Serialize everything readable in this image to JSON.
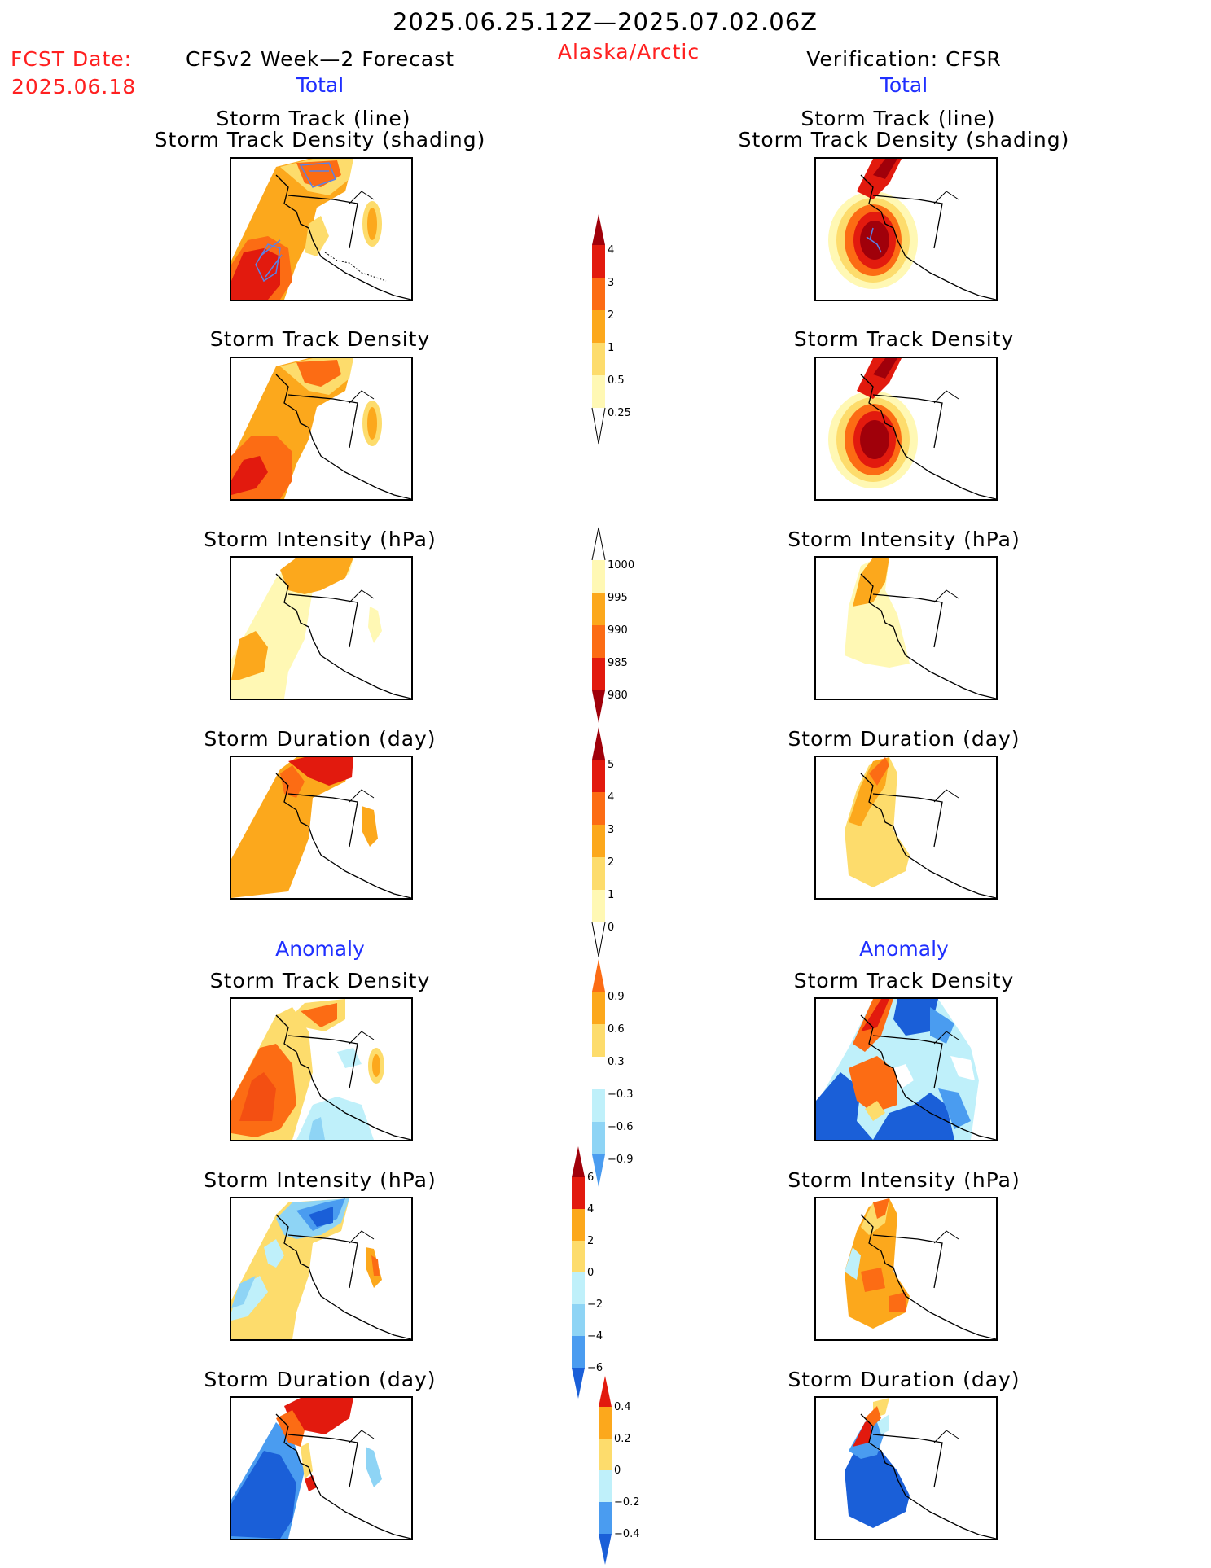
{
  "header": {
    "date_range": "2025.06.25.12Z—2025.07.02.06Z",
    "fcst_label": "FCST Date:",
    "fcst_date": "2025.06.18",
    "forecast_title": "CFSv2 Week—2 Forecast",
    "region": "Alaska/Arctic",
    "verification_title": "Verification: CFSR",
    "total_label": "Total",
    "anomaly_label": "Anomaly"
  },
  "panel_titles": {
    "track_line": "Storm Track (line)",
    "track_density_shading": "Storm Track Density (shading)",
    "track_density": "Storm Track Density",
    "intensity": "Storm Intensity (hPa)",
    "duration": "Storm Duration (day)"
  },
  "colorbars": {
    "density": [
      "4",
      "3",
      "2",
      "1",
      "0.5",
      "0.25"
    ],
    "intensity": [
      "1000",
      "995",
      "990",
      "985",
      "980"
    ],
    "duration": [
      "5",
      "4",
      "3",
      "2",
      "1",
      "0"
    ],
    "density_anomaly": [
      "0.9",
      "0.6",
      "0.3",
      "−0.3",
      "−0.6",
      "−0.9"
    ],
    "intensity_anomaly": [
      "6",
      "4",
      "2",
      "0",
      "−2",
      "−4",
      "−6"
    ],
    "duration_anomaly": [
      "0.4",
      "0.2",
      "0",
      "−0.2",
      "−0.4"
    ]
  },
  "colors": {
    "warm": [
      "#fff8b4",
      "#fddc6c",
      "#fca81c",
      "#fc6c14",
      "#e21a0e",
      "#a0000a"
    ],
    "cool": [
      "#bff0fa",
      "#8ed4f5",
      "#4a9cf0",
      "#1a5fd8"
    ]
  }
}
